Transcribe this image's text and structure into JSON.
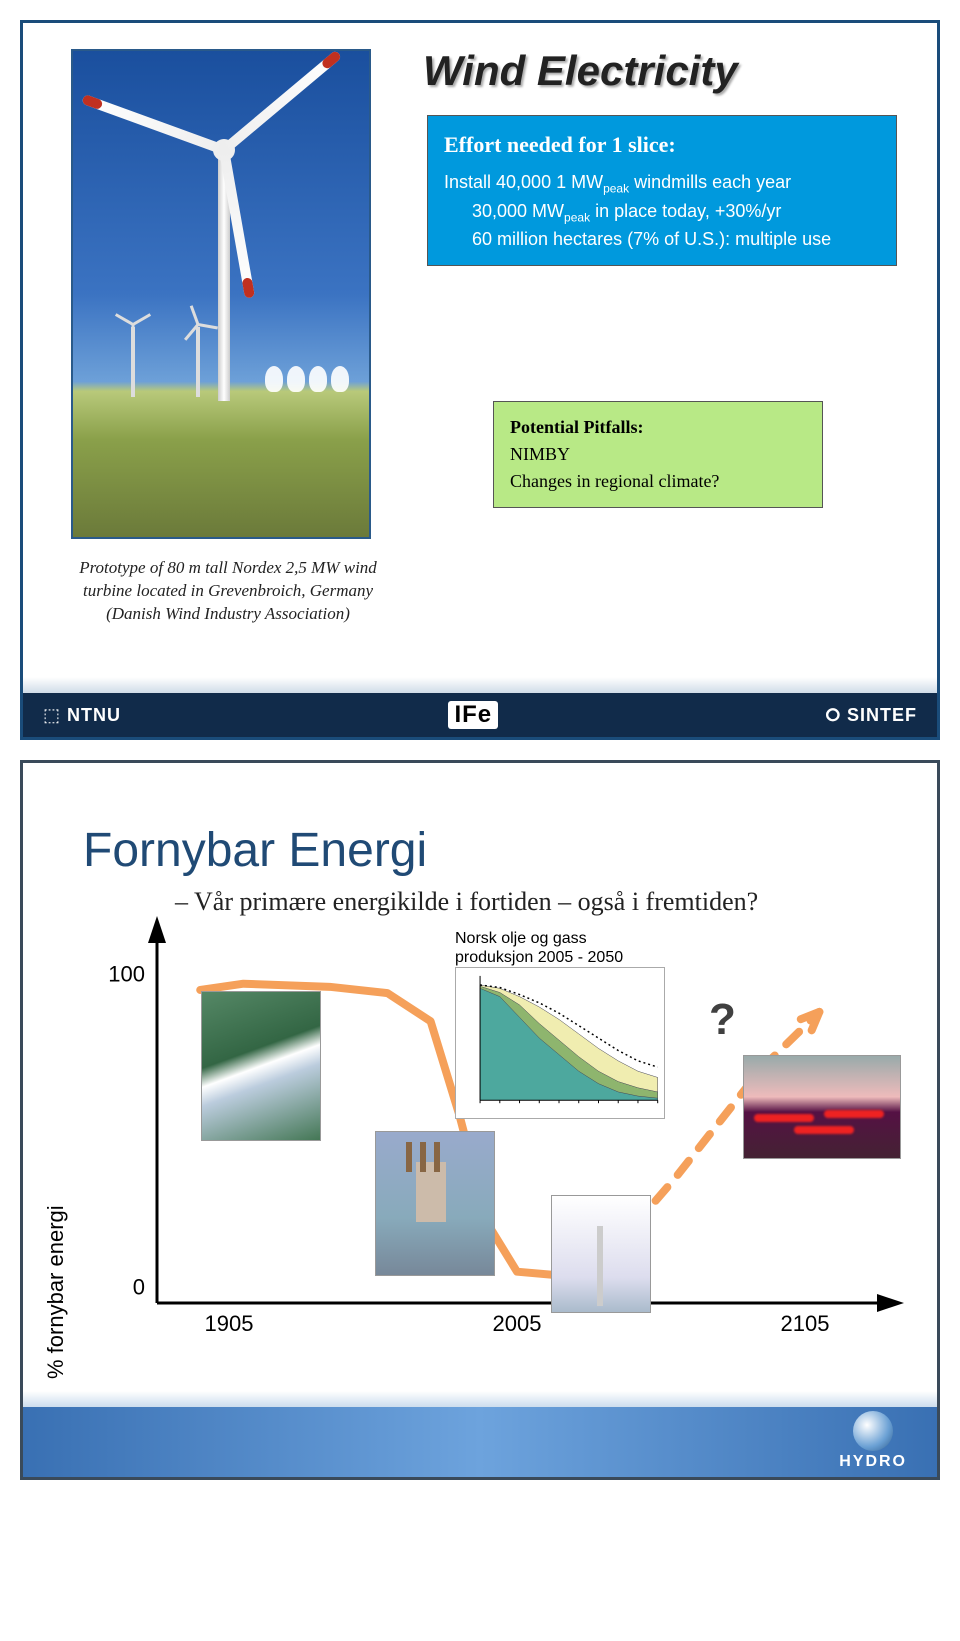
{
  "slide1": {
    "title": "Wind Electricity",
    "effort_box": {
      "heading": "Effort needed for 1 slice:",
      "line1_pre": "Install 40,000 1 MW",
      "line1_sub": "peak",
      "line1_post": " windmills each year",
      "line2_pre": "30,000 MW",
      "line2_sub": "peak",
      "line2_post": " in place today, +30%/yr",
      "line3": "60 million hectares (7% of U.S.): multiple use",
      "bg_color": "#0099dd",
      "text_color": "#ffffff",
      "heading_fontsize": 22,
      "body_fontsize": 18
    },
    "pitfalls_box": {
      "heading": "Potential Pitfalls:",
      "line1": "NIMBY",
      "line2": "Changes in regional climate?",
      "bg_color": "#b8e986",
      "text_color": "#000000",
      "fontsize": 18
    },
    "caption": {
      "line1": "Prototype of 80 m tall Nordex 2,5 MW wind turbine located in Grevenbroich, Germany",
      "line2": "(Danish Wind Industry Association)",
      "fontsize": 17,
      "font_style": "italic"
    },
    "footer": {
      "left": "NTNU",
      "center": "IFe",
      "right": "SINTEF",
      "bg_color": "#112b4a",
      "text_color": "#ffffff"
    },
    "photo": {
      "sky_top": "#1a4f9e",
      "sky_bottom": "#6da0d8",
      "ground": "#8aa04a",
      "blade_tip": "#c03020"
    }
  },
  "slide2": {
    "title": "Fornybar Energi",
    "title_color": "#204a75",
    "title_fontsize": 48,
    "subtitle": "– Vår primære energikilde i fortiden – også i fremtiden?",
    "subtitle_fontsize": 26,
    "chart": {
      "type": "line",
      "y_label": "% fornybar energi",
      "y_ticks": [
        0,
        100
      ],
      "x_ticks": [
        1905,
        2005,
        2105
      ],
      "xlim": [
        1880,
        2130
      ],
      "ylim": [
        -5,
        110
      ],
      "line_color": "#f5a05a",
      "line_width": 8,
      "axis_color": "#000000",
      "axis_width": 3,
      "arrowheads": true,
      "curve_points": [
        [
          1895,
          95
        ],
        [
          1910,
          97
        ],
        [
          1940,
          96
        ],
        [
          1960,
          94
        ],
        [
          1975,
          85
        ],
        [
          1985,
          55
        ],
        [
          1995,
          20
        ],
        [
          2005,
          5
        ],
        [
          2030,
          3
        ],
        [
          2060,
          35
        ],
        [
          2090,
          70
        ],
        [
          2110,
          88
        ]
      ],
      "dashed_from_index": 8,
      "question_mark": "?",
      "qmark_fontsize": 44
    },
    "oil_chart": {
      "label": "Norsk olje og gass\nproduksjon 2005 - 2050",
      "label_fontsize": 16,
      "type": "area",
      "xlim": [
        2005,
        2050
      ],
      "ylim": [
        0,
        300
      ],
      "background": "#ffffff",
      "series": [
        {
          "color": "#4da89e",
          "values": [
            270,
            250,
            200,
            150,
            110,
            70,
            40,
            20,
            10,
            5
          ]
        },
        {
          "color": "#8eb56e",
          "values": [
            275,
            260,
            230,
            185,
            145,
            105,
            70,
            45,
            30,
            20
          ]
        },
        {
          "color": "#f0edb0",
          "values": [
            278,
            270,
            250,
            225,
            195,
            160,
            125,
            95,
            70,
            55
          ]
        }
      ],
      "dotted_line": {
        "color": "#000000",
        "values": [
          278,
          272,
          255,
          235,
          210,
          180,
          150,
          120,
          95,
          80
        ]
      }
    },
    "footer": {
      "logo_text": "HYDRO",
      "bg_gradient_left": "#3970b3",
      "bg_gradient_mid": "#6da3dd",
      "logo_text_color": "#ffffff"
    }
  }
}
